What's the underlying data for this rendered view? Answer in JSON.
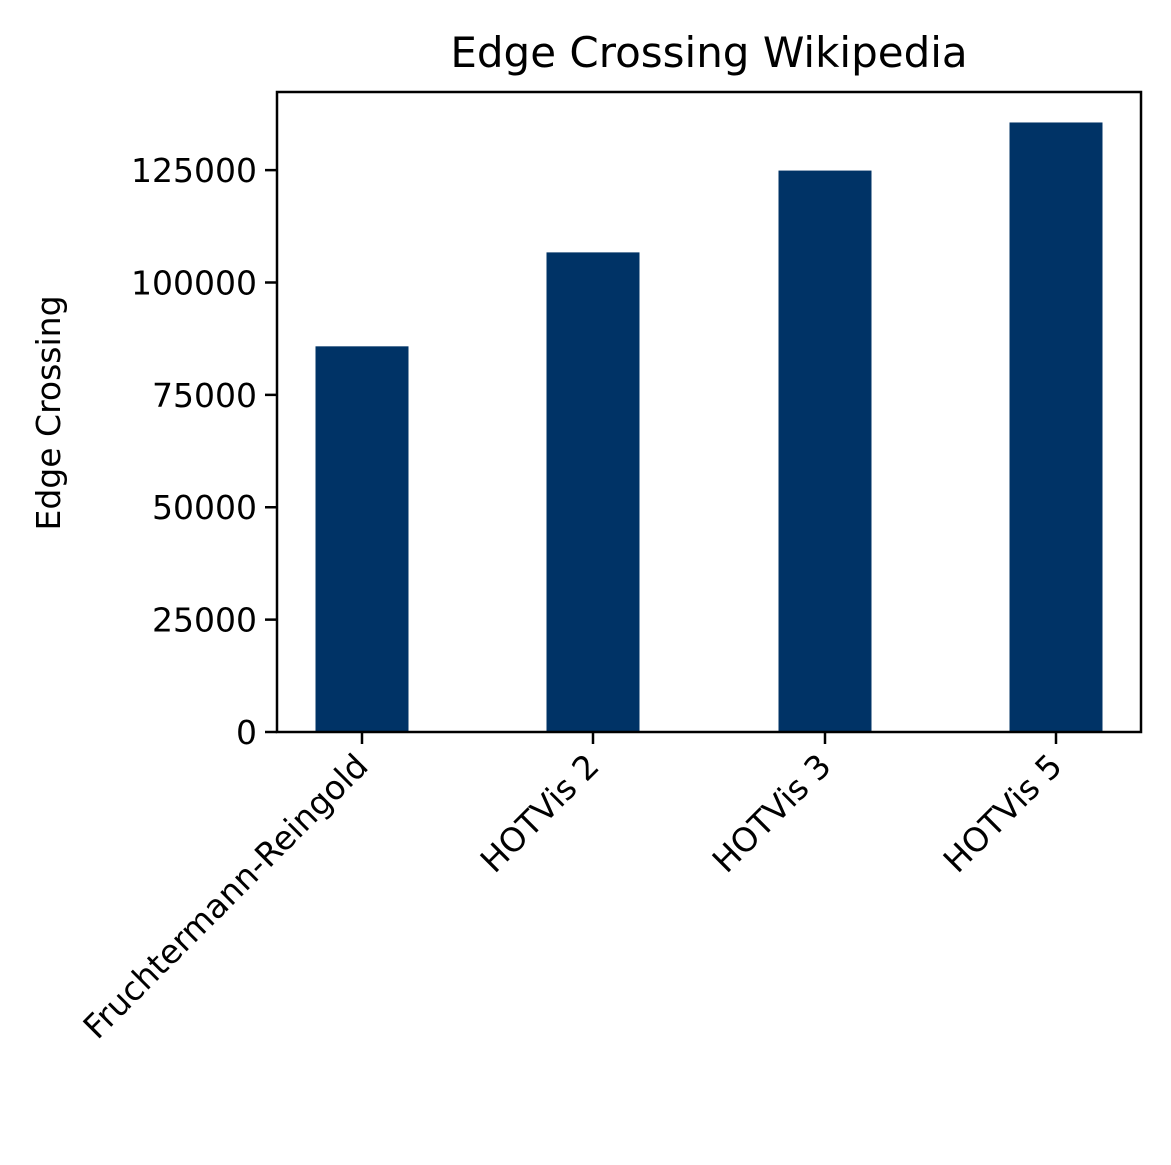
{
  "chart_data": {
    "type": "bar",
    "title": "Edge Crossing Wikipedia",
    "xlabel": "",
    "ylabel": "Edge Crossing",
    "categories": [
      "Fruchtermann-Reingold",
      "HOTVis 2",
      "HOTVis 3",
      "HOTVis 5"
    ],
    "values": [
      85800,
      106700,
      124900,
      135600
    ],
    "ylim": [
      0,
      142380
    ],
    "yticks": [
      0,
      25000,
      50000,
      75000,
      100000,
      125000
    ],
    "grid": false,
    "legend": "none",
    "bar_color": "#003366",
    "x_tick_rotation_deg": 45
  }
}
